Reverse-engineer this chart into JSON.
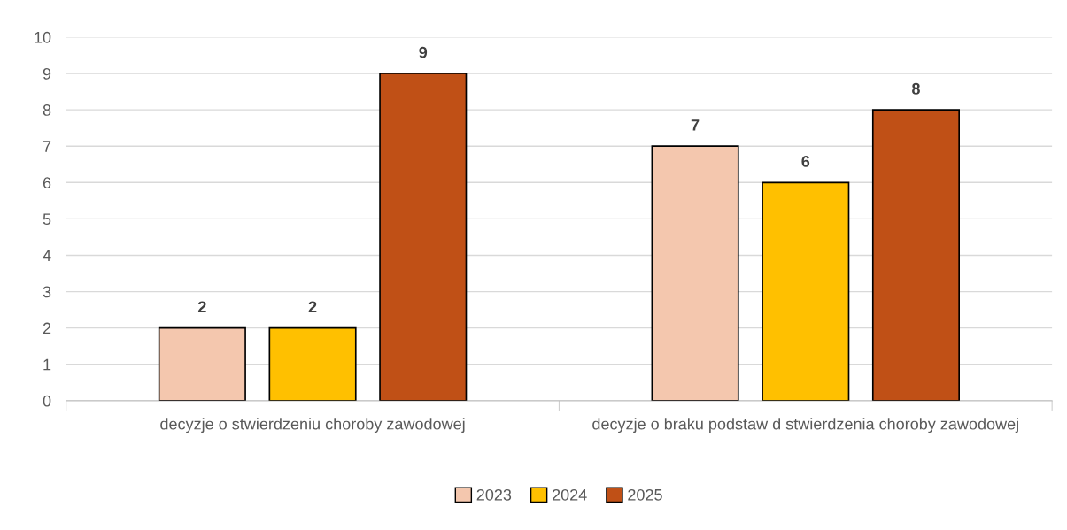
{
  "chart_data": {
    "type": "bar",
    "categories": [
      "decyzje o stwierdzeniu choroby zawodowej",
      "decyzje o braku podstaw d stwierdzenia choroby zawodowej"
    ],
    "series": [
      {
        "name": "2023",
        "color": "#f4c7ae",
        "values": [
          2,
          7
        ]
      },
      {
        "name": "2024",
        "color": "#ffc000",
        "values": [
          2,
          6
        ]
      },
      {
        "name": "2025",
        "color": "#c05016",
        "values": [
          9,
          8
        ]
      }
    ],
    "ylim": [
      0,
      10
    ],
    "yticks": [
      0,
      1,
      2,
      3,
      4,
      5,
      6,
      7,
      8,
      9,
      10
    ],
    "grid": "y",
    "legend": "bottom",
    "data_labels": true
  }
}
